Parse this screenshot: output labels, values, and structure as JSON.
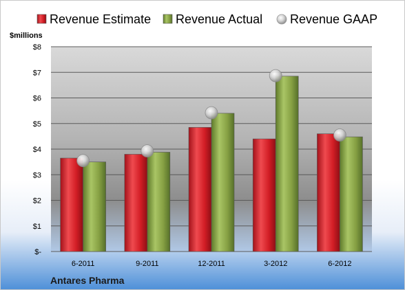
{
  "chart_data": {
    "type": "bar",
    "title": "",
    "xlabel": "",
    "ylabel": "$millions",
    "company": "Antares Pharma",
    "categories": [
      "6-2011",
      "9-2011",
      "12-2011",
      "3-2012",
      "6-2012"
    ],
    "series": [
      {
        "name": "Revenue Estimate",
        "kind": "bar",
        "color": "#d9252b",
        "values": [
          3.65,
          3.8,
          4.85,
          4.4,
          4.6
        ]
      },
      {
        "name": "Revenue Actual",
        "kind": "bar",
        "color": "#8aa646",
        "values": [
          3.5,
          3.88,
          5.4,
          6.85,
          4.48
        ]
      },
      {
        "name": "Revenue GAAP",
        "kind": "marker",
        "color": "#c8c8c8",
        "values": [
          3.55,
          3.93,
          5.42,
          6.87,
          4.55
        ]
      }
    ],
    "ylim": [
      0,
      8
    ],
    "yticks": [
      "$-",
      "$1",
      "$2",
      "$3",
      "$4",
      "$5",
      "$6",
      "$7",
      "$8"
    ],
    "grid": true,
    "legend_position": "top"
  }
}
